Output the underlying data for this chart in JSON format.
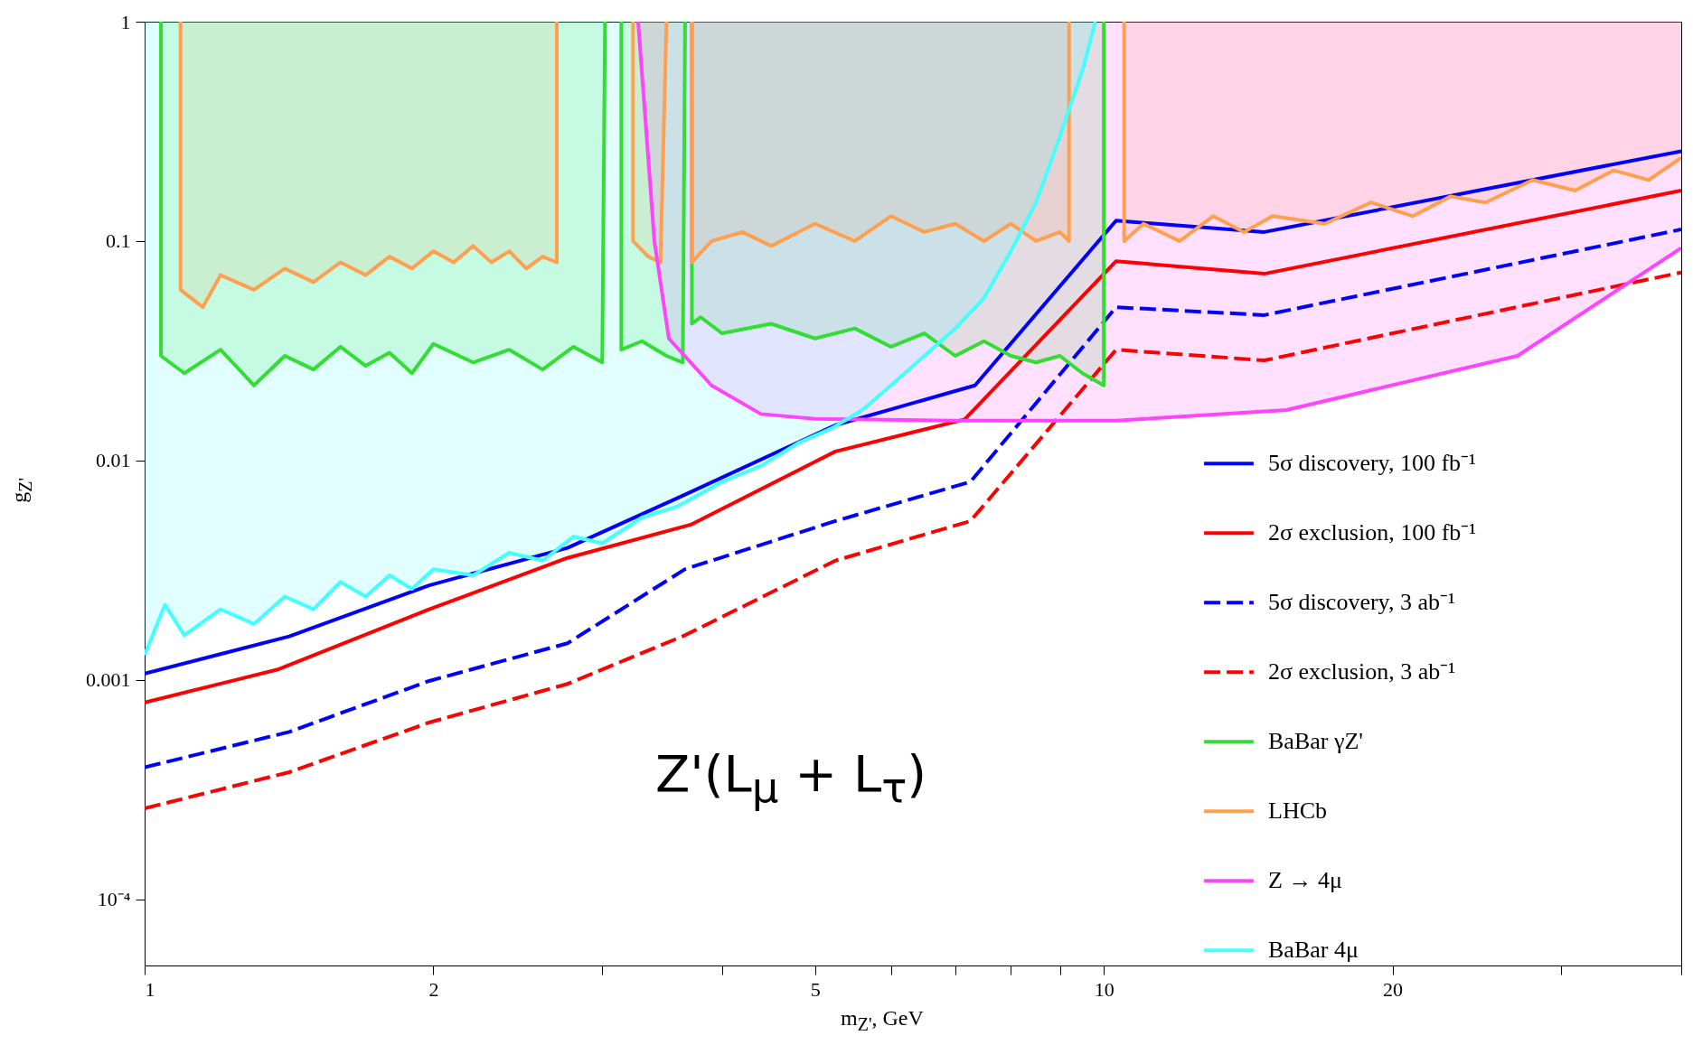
{
  "chart_data": {
    "type": "line",
    "xlabel": "m$_{Z'}$, GeV",
    "ylabel": "g$_{Z'}$",
    "annotations": [
      "Z'(L$_{μ}$ + L$_{τ}$)"
    ],
    "log": "xy",
    "grid": false,
    "legend": "right",
    "marker": "none",
    "xlim": [
      1,
      40
    ],
    "ylim": [
      5e-05,
      1
    ],
    "xticks": [
      1,
      2,
      {
        "value": 3,
        "label": null
      },
      {
        "value": 4,
        "label": null
      },
      5,
      {
        "value": 6,
        "label": null
      },
      {
        "value": 7,
        "label": null
      },
      {
        "value": 8,
        "label": null
      },
      {
        "value": 9,
        "label": null
      },
      10,
      20,
      {
        "value": 30,
        "label": null
      },
      {
        "value": 40,
        "label": null
      }
    ],
    "yticks": [
      {
        "value": 0.0001,
        "label": "10⁻⁴"
      },
      0.001,
      0.01,
      0.1,
      1
    ],
    "series": [
      {
        "name": "5σ discovery, 100 fb⁻¹",
        "color": "#0000ff",
        "line_style": "solid",
        "x": [
          1,
          1.415,
          1.98,
          2.76,
          3.66,
          5.25,
          7.34,
          10.3,
          14.7,
          40
        ],
        "values": [
          0.00107,
          0.00158,
          0.0027,
          0.004,
          0.007,
          0.0145,
          0.022,
          0.124,
          0.11,
          0.257
        ]
      },
      {
        "name": "2σ exclusion, 100 fb⁻¹",
        "color": "#ff0000",
        "line_style": "solid",
        "x": [
          1,
          1.38,
          1.98,
          2.76,
          3.71,
          5.25,
          7.16,
          10.3,
          14.7,
          40
        ],
        "values": [
          0.00079,
          0.00112,
          0.0021,
          0.0036,
          0.0051,
          0.011,
          0.0154,
          0.081,
          0.071,
          0.17
        ]
      },
      {
        "name": "5σ discovery, 3 ab⁻¹",
        "color": "#0000ff",
        "line_style": "dashed",
        "x": [
          1,
          1.415,
          1.98,
          2.76,
          3.66,
          5.25,
          7.26,
          10.3,
          14.7,
          40
        ],
        "values": [
          0.0004,
          0.00058,
          0.00099,
          0.00147,
          0.0032,
          0.0053,
          0.008,
          0.05,
          0.046,
          0.113
        ]
      },
      {
        "name": "2σ exclusion, 3 ab⁻¹",
        "color": "#ff0000",
        "line_style": "dashed",
        "x": [
          1,
          1.415,
          1.98,
          2.76,
          3.66,
          5.25,
          7.26,
          10.3,
          14.7,
          40
        ],
        "values": [
          0.00026,
          0.00038,
          0.00064,
          0.00096,
          0.0016,
          0.0035,
          0.0053,
          0.032,
          0.0286,
          0.072
        ]
      },
      {
        "name": "BaBar γZ'",
        "type": "line",
        "color": "#33dd33",
        "line_style": "solid",
        "x": [
          1.04,
          1.04,
          1.1,
          1.2,
          1.3,
          1.4,
          1.5,
          1.6,
          1.7,
          1.8,
          1.9,
          2.0,
          2.2,
          2.4,
          2.6,
          2.8,
          3.0,
          3.02,
          3.08,
          3.14,
          3.14,
          3.3,
          3.5,
          3.64,
          3.66,
          3.69,
          3.72,
          3.72,
          3.8,
          4.0,
          4.5,
          5.0,
          5.5,
          6.0,
          6.5,
          7.0,
          7.5,
          8.0,
          8.5,
          9.0,
          9.5,
          10.0,
          10.0
        ],
        "values": [
          1,
          0.03,
          0.025,
          0.032,
          0.022,
          0.03,
          0.026,
          0.033,
          0.027,
          0.031,
          0.025,
          0.034,
          0.028,
          0.032,
          0.026,
          0.033,
          0.028,
          1,
          null,
          1,
          0.032,
          0.035,
          0.03,
          0.028,
          1,
          null,
          1,
          0.042,
          0.045,
          0.038,
          0.042,
          0.036,
          0.04,
          0.033,
          0.038,
          0.03,
          0.035,
          0.03,
          0.028,
          0.03,
          0.025,
          0.022,
          1
        ]
      },
      {
        "name": "LHCb",
        "type": "line",
        "color": "#ffa050",
        "line_style": "solid",
        "x": [
          1.09,
          1.09,
          1.15,
          1.2,
          1.3,
          1.4,
          1.5,
          1.6,
          1.7,
          1.8,
          1.9,
          2.0,
          2.1,
          2.2,
          2.3,
          2.4,
          2.5,
          2.6,
          2.69,
          2.69,
          2.9,
          3.23,
          3.23,
          3.35,
          3.45,
          3.5,
          3.6,
          3.72,
          3.72,
          3.9,
          4.2,
          4.5,
          5,
          5.5,
          6,
          6.5,
          7,
          7.5,
          8,
          8.5,
          9,
          9.2,
          9.2,
          9.8,
          10.5,
          10.5,
          11,
          12,
          13,
          14,
          15,
          17,
          19,
          21,
          23,
          25,
          28,
          31,
          34,
          37,
          40
        ],
        "values": [
          1,
          0.06,
          0.05,
          0.07,
          0.06,
          0.075,
          0.065,
          0.08,
          0.07,
          0.085,
          0.075,
          0.09,
          0.08,
          0.095,
          0.08,
          0.09,
          0.075,
          0.085,
          0.08,
          1,
          null,
          1,
          0.1,
          0.085,
          0.08,
          1,
          null,
          1,
          0.08,
          0.1,
          0.11,
          0.095,
          0.12,
          0.1,
          0.13,
          0.11,
          0.12,
          0.1,
          0.12,
          0.1,
          0.11,
          0.1,
          1,
          null,
          1,
          0.1,
          0.12,
          0.1,
          0.13,
          0.11,
          0.13,
          0.12,
          0.15,
          0.13,
          0.16,
          0.15,
          0.19,
          0.17,
          0.21,
          0.19,
          0.24
        ]
      },
      {
        "name": "Z → 4μ",
        "type": "line",
        "color": "#ff44ff",
        "line_style": "solid",
        "x": [
          3.27,
          3.4,
          3.52,
          3.9,
          4.39,
          5,
          7,
          10.3,
          15.5,
          27,
          40
        ],
        "values": [
          1,
          0.1,
          0.036,
          0.022,
          0.0163,
          0.0155,
          0.0152,
          0.0152,
          0.017,
          0.03,
          0.093
        ]
      },
      {
        "name": "BaBar 4μ",
        "type": "line",
        "color": "#44ffff",
        "line_style": "solid",
        "x": [
          1.0,
          1.05,
          1.1,
          1.2,
          1.3,
          1.4,
          1.5,
          1.6,
          1.7,
          1.8,
          1.9,
          2.0,
          2.2,
          2.4,
          2.6,
          2.8,
          3.0,
          3.3,
          3.6,
          4.0,
          4.4,
          4.8,
          5.2,
          5.6,
          6.0,
          6.5,
          7.0,
          7.5,
          8.0,
          8.5,
          9.0,
          9.5,
          9.8
        ],
        "values": [
          0.0013,
          0.0022,
          0.0016,
          0.0021,
          0.0018,
          0.0024,
          0.0021,
          0.0028,
          0.0024,
          0.003,
          0.0026,
          0.0032,
          0.003,
          0.0038,
          0.0035,
          0.0045,
          0.0042,
          0.0055,
          0.0062,
          0.008,
          0.0095,
          0.012,
          0.014,
          0.017,
          0.022,
          0.03,
          0.04,
          0.055,
          0.09,
          0.15,
          0.3,
          0.6,
          1
        ]
      }
    ]
  }
}
